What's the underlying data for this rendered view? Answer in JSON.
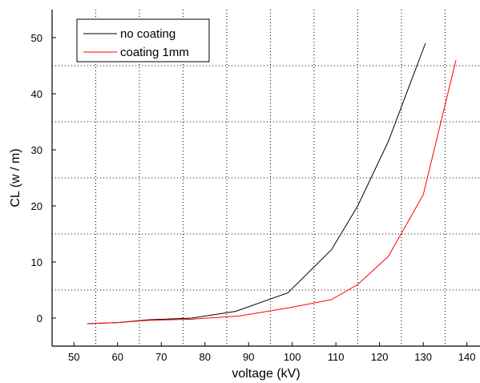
{
  "chart_data": {
    "type": "line",
    "title": "",
    "xlabel": "voltage (kV)",
    "ylabel": "CL (w / m)",
    "xlim": [
      45,
      143
    ],
    "ylim": [
      -5,
      55
    ],
    "x_ticks": [
      50,
      60,
      70,
      80,
      90,
      100,
      110,
      120,
      130,
      140
    ],
    "x_tick_labels": [
      "50",
      "60",
      "70",
      "80",
      "90",
      "100",
      "110",
      "120",
      "130",
      "140"
    ],
    "y_ticks": [
      0,
      10,
      20,
      30,
      40,
      50
    ],
    "y_tick_labels": [
      "0",
      "10",
      "20",
      "30",
      "40",
      "50"
    ],
    "x_grid": [
      55,
      65,
      75,
      85,
      95,
      105,
      115,
      125,
      135
    ],
    "y_grid": [
      5,
      15,
      25,
      35,
      45
    ],
    "grid": true,
    "legend_position": "top-left",
    "series": [
      {
        "name": "no coating",
        "color": "#000000",
        "x": [
          53,
          60,
          67,
          77,
          87,
          99,
          109,
          115,
          122,
          130.5
        ],
        "y": [
          -1,
          -0.8,
          -0.3,
          0,
          1.2,
          4.5,
          12.2,
          20,
          31.5,
          49
        ]
      },
      {
        "name": "coating 1mm",
        "color": "#ff0000",
        "x": [
          53,
          60,
          67,
          77,
          88,
          99,
          109,
          115,
          122,
          130,
          137.5
        ],
        "y": [
          -1,
          -0.8,
          -0.4,
          -0.2,
          0.4,
          1.8,
          3.3,
          6,
          11,
          22,
          46
        ]
      }
    ]
  }
}
